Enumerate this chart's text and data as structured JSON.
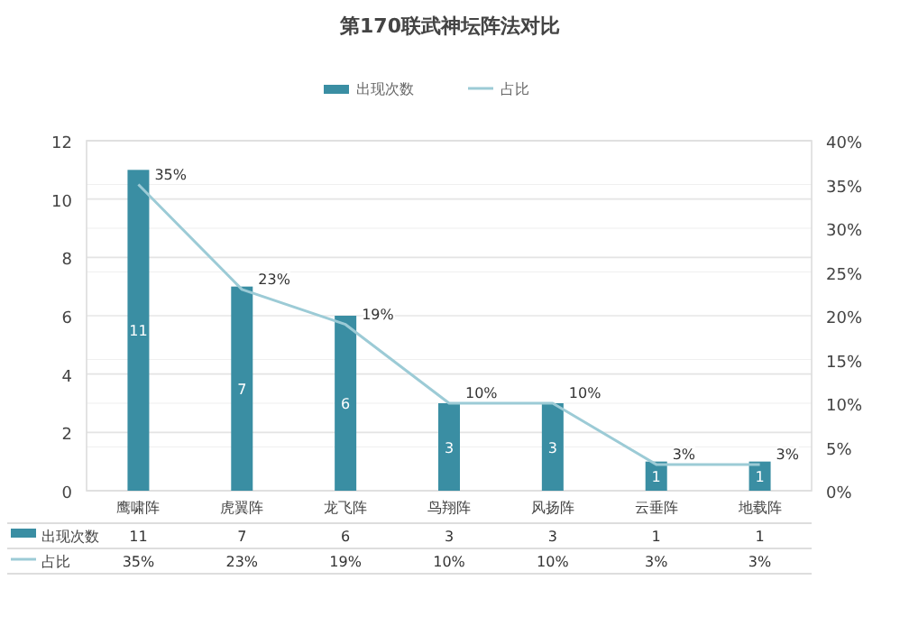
{
  "chart_data": {
    "type": "bar",
    "title": "第170联武神坛阵法对比",
    "categories": [
      "鹰啸阵",
      "虎翼阵",
      "龙飞阵",
      "鸟翔阵",
      "风扬阵",
      "云垂阵",
      "地载阵"
    ],
    "series": [
      {
        "name": "出现次数",
        "color": "#3a8ea3",
        "values": [
          11,
          7,
          6,
          3,
          3,
          1,
          1
        ],
        "value_labels": [
          "11",
          "7",
          "6",
          "3",
          "3",
          "1",
          "1"
        ]
      },
      {
        "name": "占比",
        "type": "line",
        "axis": "y2",
        "color": "#9ccbd6",
        "values": [
          35,
          23,
          19,
          10,
          10,
          3,
          3
        ],
        "value_labels": [
          "35%",
          "23%",
          "19%",
          "10%",
          "10%",
          "3%",
          "3%"
        ]
      }
    ],
    "ylim": [
      0,
      12
    ],
    "yticks": [
      0,
      2,
      4,
      6,
      8,
      10,
      12
    ],
    "y2lim": [
      0,
      40
    ],
    "y2ticks": [
      {
        "value": 0,
        "label": "0%"
      },
      {
        "value": 5,
        "label": "5%"
      },
      {
        "value": 10,
        "label": "10%"
      },
      {
        "value": 15,
        "label": "15%"
      },
      {
        "value": 20,
        "label": "20%"
      },
      {
        "value": 25,
        "label": "25%"
      },
      {
        "value": 30,
        "label": "30%"
      },
      {
        "value": 35,
        "label": "35%"
      },
      {
        "value": 40,
        "label": "40%"
      }
    ],
    "grid": "y",
    "legend": "top",
    "marker": "none"
  }
}
